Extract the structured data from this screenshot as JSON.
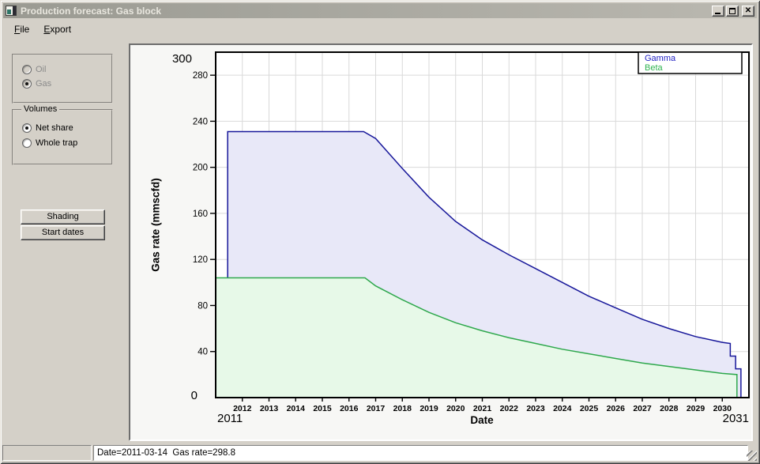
{
  "window": {
    "title": "Production forecast: Gas block",
    "icons": {
      "app": "chart-window-icon",
      "minimize": "minimize-icon",
      "maximize": "maximize-icon",
      "close": "close-icon",
      "close_glyph": "✕"
    }
  },
  "menu": {
    "items": [
      {
        "label": "File",
        "underline": 0
      },
      {
        "label": "Export",
        "underline": 0
      }
    ]
  },
  "sidebar": {
    "phase_group": {
      "options": [
        {
          "label": "Oil",
          "selected": false,
          "enabled": false
        },
        {
          "label": "Gas",
          "selected": true,
          "enabled": false
        }
      ]
    },
    "volumes_group": {
      "title": "Volumes",
      "options": [
        {
          "label": "Net share",
          "selected": true,
          "enabled": true
        },
        {
          "label": "Whole trap",
          "selected": false,
          "enabled": true
        }
      ]
    },
    "buttons": [
      {
        "label": "Shading"
      },
      {
        "label": "Start dates"
      }
    ]
  },
  "chart_data": {
    "type": "area",
    "mode": "stacked",
    "xlabel": "Date",
    "ylabel": "Gas rate (mmscfd)",
    "xlim": [
      2011,
      2031
    ],
    "ylim": [
      0,
      300
    ],
    "x_min_label": "2011",
    "x_max_label": "2031",
    "y_min_label": "0",
    "y_max_label": "300",
    "x_ticks": [
      2012,
      2013,
      2014,
      2015,
      2016,
      2017,
      2018,
      2019,
      2020,
      2021,
      2022,
      2023,
      2024,
      2025,
      2026,
      2027,
      2028,
      2029,
      2030
    ],
    "y_ticks": [
      40,
      80,
      120,
      160,
      200,
      240,
      280
    ],
    "grid": true,
    "grid_color": "#d9d9d9",
    "legend": {
      "position": "top-right",
      "entries": [
        {
          "label": "Gamma",
          "color": "#2323c4"
        },
        {
          "label": "Beta",
          "color": "#2eb34f"
        }
      ]
    },
    "series": [
      {
        "name": "Gamma",
        "stacked_total": true,
        "line_color": "#17179a",
        "fill_color": "#e8e8f8",
        "points": [
          [
            2011.45,
            104
          ],
          [
            2011.45,
            231
          ],
          [
            2016.55,
            231
          ],
          [
            2017,
            225
          ],
          [
            2018,
            199
          ],
          [
            2019,
            174
          ],
          [
            2020,
            153
          ],
          [
            2021,
            137
          ],
          [
            2022,
            124
          ],
          [
            2023,
            112
          ],
          [
            2024,
            100
          ],
          [
            2025,
            88
          ],
          [
            2026,
            78
          ],
          [
            2027,
            68
          ],
          [
            2028,
            60
          ],
          [
            2029,
            53
          ],
          [
            2030,
            48
          ],
          [
            2030.3,
            47
          ],
          [
            2030.3,
            36
          ],
          [
            2030.5,
            36
          ],
          [
            2030.5,
            25
          ],
          [
            2030.7,
            25
          ],
          [
            2030.7,
            0
          ]
        ]
      },
      {
        "name": "Beta",
        "stacked_total": false,
        "line_color": "#2ea84c",
        "fill_color": "#e7f9e8",
        "points": [
          [
            2011,
            104
          ],
          [
            2016.6,
            104
          ],
          [
            2017,
            97
          ],
          [
            2018,
            85
          ],
          [
            2019,
            74
          ],
          [
            2020,
            65
          ],
          [
            2021,
            58
          ],
          [
            2022,
            52
          ],
          [
            2023,
            47
          ],
          [
            2024,
            42
          ],
          [
            2025,
            38
          ],
          [
            2026,
            34
          ],
          [
            2027,
            30
          ],
          [
            2028,
            27
          ],
          [
            2029,
            24
          ],
          [
            2030,
            21
          ],
          [
            2030.55,
            20
          ],
          [
            2030.55,
            0
          ]
        ]
      }
    ]
  },
  "status_bar": {
    "text": "Date=2011-03-14  Gas rate=298.8"
  }
}
